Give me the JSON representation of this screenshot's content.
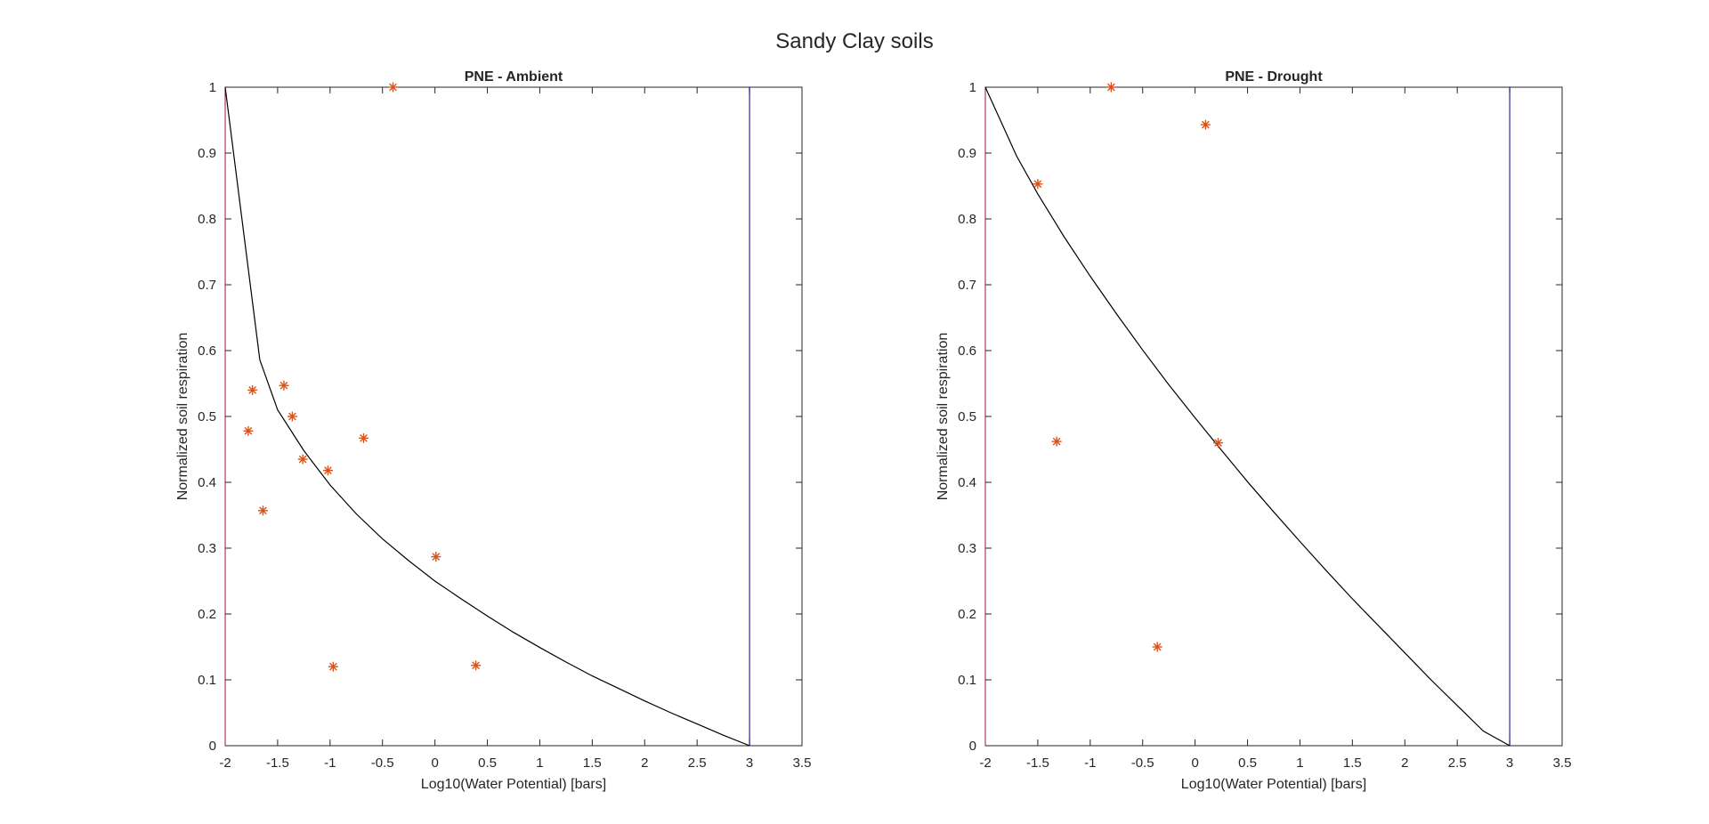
{
  "figure": {
    "title": "Sandy Clay soils"
  },
  "chart_data": [
    {
      "type": "scatter",
      "title": "PNE - Ambient",
      "xlabel": "Log10(Water Potential) [bars]",
      "ylabel": "Normalized soil respiration",
      "xlim": [
        -2,
        3.5
      ],
      "ylim": [
        0,
        1
      ],
      "xticks": [
        "-2",
        "-1.5",
        "-1",
        "-0.5",
        "0",
        "0.5",
        "1",
        "1.5",
        "2",
        "2.5",
        "3",
        "3.5"
      ],
      "yticks": [
        "0",
        "0.1",
        "0.2",
        "0.3",
        "0.4",
        "0.5",
        "0.6",
        "0.7",
        "0.8",
        "0.9",
        "1"
      ],
      "grid": false,
      "colors": {
        "points": "#d95319",
        "curve": "#000000",
        "left_line": "#a2142f",
        "right_line": "#000080"
      },
      "points": {
        "x": [
          -0.4,
          -1.78,
          -1.74,
          -1.44,
          -1.36,
          -1.26,
          -1.02,
          -0.68,
          -1.64,
          0.01,
          -0.97,
          0.39
        ],
        "y": [
          1.0,
          0.478,
          0.54,
          0.547,
          0.5,
          0.435,
          0.418,
          0.467,
          0.357,
          0.287,
          0.12,
          0.122
        ]
      },
      "curve": {
        "x": [
          -2,
          -1.67,
          -1.5,
          -1.25,
          -1,
          -0.75,
          -0.5,
          -0.25,
          0,
          0.25,
          0.5,
          0.75,
          1,
          1.25,
          1.5,
          1.75,
          2,
          2.25,
          2.5,
          2.75,
          3
        ],
        "y": [
          1.0,
          0.586,
          0.51,
          0.448,
          0.396,
          0.352,
          0.314,
          0.281,
          0.25,
          0.223,
          0.197,
          0.172,
          0.149,
          0.127,
          0.106,
          0.087,
          0.068,
          0.05,
          0.033,
          0.016,
          0.0
        ]
      },
      "vlines": [
        -2,
        3
      ]
    },
    {
      "type": "scatter",
      "title": "PNE - Drought",
      "xlabel": "Log10(Water Potential) [bars]",
      "ylabel": "Normalized soil respiration",
      "xlim": [
        -2,
        3.5
      ],
      "ylim": [
        0,
        1
      ],
      "xticks": [
        "-2",
        "-1.5",
        "-1",
        "-0.5",
        "0",
        "0.5",
        "1",
        "1.5",
        "2",
        "2.5",
        "3",
        "3.5"
      ],
      "yticks": [
        "0",
        "0.1",
        "0.2",
        "0.3",
        "0.4",
        "0.5",
        "0.6",
        "0.7",
        "0.8",
        "0.9",
        "1"
      ],
      "grid": false,
      "colors": {
        "points": "#d95319",
        "curve": "#000000",
        "left_line": "#a2142f",
        "right_line": "#000080"
      },
      "points": {
        "x": [
          -0.8,
          -1.5,
          0.1,
          -1.32,
          0.22,
          -0.36
        ],
        "y": [
          1.0,
          0.853,
          0.943,
          0.462,
          0.46,
          0.15
        ]
      },
      "curve": {
        "x": [
          -2,
          -1.7,
          -1.5,
          -1.25,
          -1,
          -0.75,
          -0.5,
          -0.25,
          0,
          0.25,
          0.5,
          0.75,
          1,
          1.25,
          1.5,
          1.75,
          2,
          2.25,
          2.5,
          2.75,
          3
        ],
        "y": [
          1.0,
          0.895,
          0.838,
          0.773,
          0.713,
          0.656,
          0.601,
          0.548,
          0.498,
          0.449,
          0.401,
          0.355,
          0.31,
          0.266,
          0.223,
          0.182,
          0.141,
          0.1,
          0.061,
          0.022,
          0.0
        ]
      },
      "vlines": [
        -2,
        3
      ]
    }
  ]
}
